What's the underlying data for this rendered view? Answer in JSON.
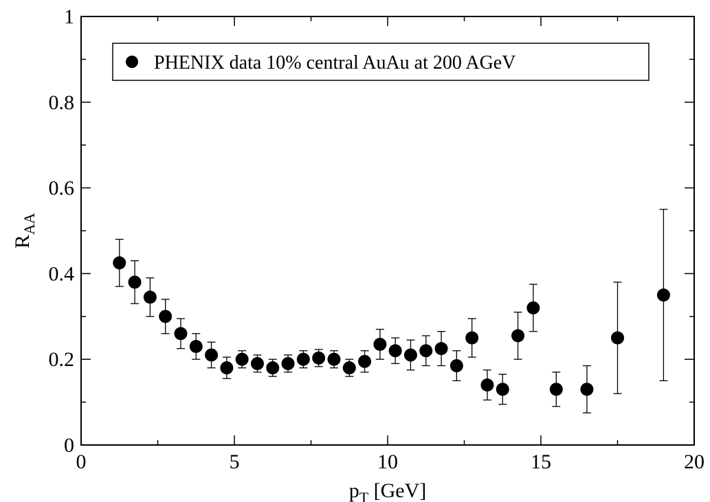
{
  "chart_data": {
    "type": "scatter",
    "title": "",
    "xlabel_main": "p",
    "xlabel_sub": "T",
    "xlabel_tail": " [GeV]",
    "ylabel_main": "R",
    "ylabel_sub": "AA",
    "xlim": [
      0,
      20
    ],
    "ylim": [
      0,
      1
    ],
    "xticks": [
      {
        "value": 0,
        "label": "0"
      },
      {
        "value": 5,
        "label": "5"
      },
      {
        "value": 10,
        "label": "10"
      },
      {
        "value": 15,
        "label": "15"
      },
      {
        "value": 20,
        "label": "20"
      }
    ],
    "yticks": [
      {
        "value": 0,
        "label": "0"
      },
      {
        "value": 0.2,
        "label": "0.2"
      },
      {
        "value": 0.4,
        "label": "0.4"
      },
      {
        "value": 0.6,
        "label": "0.6"
      },
      {
        "value": 0.8,
        "label": "0.8"
      },
      {
        "value": 1,
        "label": "1"
      }
    ],
    "grid": false,
    "legend_position": "top-left",
    "marker_color": "#000000",
    "series": [
      {
        "name": "PHENIX data 10% central AuAu at 200 AGeV",
        "x": [
          1.25,
          1.75,
          2.25,
          2.75,
          3.25,
          3.75,
          4.25,
          4.75,
          5.25,
          5.75,
          6.25,
          6.75,
          7.25,
          7.75,
          8.25,
          8.75,
          9.25,
          9.75,
          10.25,
          10.75,
          11.25,
          11.75,
          12.25,
          12.75,
          13.25,
          13.75,
          14.25,
          14.75,
          15.5,
          16.5,
          17.5,
          19.0
        ],
        "y": [
          0.425,
          0.38,
          0.345,
          0.3,
          0.26,
          0.23,
          0.21,
          0.18,
          0.2,
          0.19,
          0.18,
          0.19,
          0.2,
          0.203,
          0.2,
          0.18,
          0.195,
          0.235,
          0.22,
          0.21,
          0.22,
          0.225,
          0.185,
          0.25,
          0.14,
          0.13,
          0.255,
          0.32,
          0.13,
          0.13,
          0.25,
          0.35
        ],
        "err_low": [
          0.37,
          0.33,
          0.3,
          0.26,
          0.225,
          0.2,
          0.18,
          0.155,
          0.18,
          0.17,
          0.16,
          0.17,
          0.18,
          0.183,
          0.18,
          0.16,
          0.17,
          0.2,
          0.19,
          0.175,
          0.185,
          0.185,
          0.15,
          0.205,
          0.105,
          0.095,
          0.2,
          0.265,
          0.09,
          0.075,
          0.12,
          0.15
        ],
        "err_high": [
          0.48,
          0.43,
          0.39,
          0.34,
          0.295,
          0.26,
          0.24,
          0.205,
          0.22,
          0.21,
          0.2,
          0.21,
          0.22,
          0.223,
          0.22,
          0.2,
          0.22,
          0.27,
          0.25,
          0.245,
          0.255,
          0.265,
          0.22,
          0.295,
          0.175,
          0.165,
          0.31,
          0.375,
          0.17,
          0.185,
          0.38,
          0.55
        ]
      }
    ]
  }
}
